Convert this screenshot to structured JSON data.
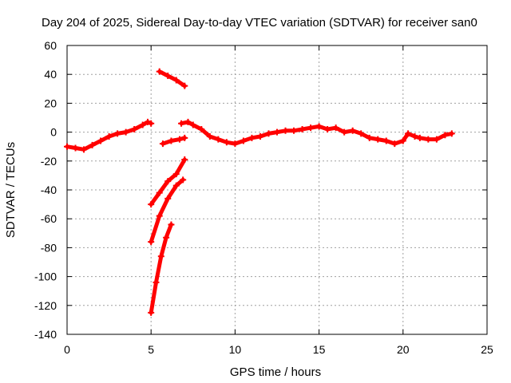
{
  "chart_data": {
    "type": "line",
    "title": "Day 204 of 2025, Sidereal Day-to-day VTEC variation (SDTVAR) for receiver san0",
    "xlabel": "GPS time / hours",
    "ylabel": "SDTVAR / TECUs",
    "xlim": [
      0,
      25
    ],
    "ylim": [
      -140,
      60
    ],
    "xticks": [
      0,
      5,
      10,
      15,
      20,
      25
    ],
    "yticks": [
      -140,
      -120,
      -100,
      -80,
      -60,
      -40,
      -20,
      0,
      20,
      40,
      60
    ],
    "xtick_labels": [
      "0",
      "5",
      "10",
      "15",
      "20",
      "25"
    ],
    "ytick_labels": [
      "-140",
      "-120",
      "-100",
      "-80",
      "-60",
      "-40",
      "-20",
      "0",
      "20",
      "40",
      "60"
    ],
    "grid": true,
    "legend": "none",
    "color": "#ff0000",
    "series": [
      {
        "name": "main",
        "points": [
          [
            0.0,
            -10
          ],
          [
            0.5,
            -11
          ],
          [
            1.0,
            -12
          ],
          [
            1.5,
            -9
          ],
          [
            2.0,
            -6
          ],
          [
            2.5,
            -3
          ],
          [
            3.0,
            -1
          ],
          [
            3.5,
            0
          ],
          [
            4.0,
            2
          ],
          [
            4.5,
            5
          ],
          [
            4.8,
            7
          ],
          [
            5.0,
            6
          ]
        ]
      },
      {
        "name": "arc-upper",
        "points": [
          [
            5.5,
            42
          ],
          [
            6.0,
            39
          ],
          [
            6.5,
            36
          ],
          [
            7.0,
            32
          ]
        ]
      },
      {
        "name": "arc-mid",
        "points": [
          [
            5.7,
            -8
          ],
          [
            6.2,
            -6
          ],
          [
            6.7,
            -5
          ],
          [
            7.0,
            -4
          ]
        ]
      },
      {
        "name": "drop-1",
        "points": [
          [
            5.0,
            -50
          ],
          [
            5.5,
            -42
          ],
          [
            6.0,
            -34
          ],
          [
            6.5,
            -29
          ],
          [
            7.0,
            -19
          ]
        ]
      },
      {
        "name": "drop-2",
        "points": [
          [
            5.0,
            -76
          ],
          [
            5.5,
            -58
          ],
          [
            6.0,
            -46
          ],
          [
            6.5,
            -37
          ],
          [
            6.9,
            -33
          ]
        ]
      },
      {
        "name": "drop-3",
        "points": [
          [
            5.0,
            -125
          ],
          [
            5.3,
            -104
          ],
          [
            5.6,
            -86
          ],
          [
            5.9,
            -73
          ],
          [
            6.2,
            -64
          ]
        ]
      },
      {
        "name": "tail",
        "points": [
          [
            6.8,
            6
          ],
          [
            7.2,
            7
          ],
          [
            7.5,
            5
          ],
          [
            8.0,
            2
          ],
          [
            8.5,
            -3
          ],
          [
            9.0,
            -5
          ],
          [
            9.5,
            -7
          ],
          [
            10.0,
            -8
          ],
          [
            10.5,
            -6
          ],
          [
            11.0,
            -4
          ],
          [
            11.5,
            -3
          ],
          [
            12.0,
            -1
          ],
          [
            12.5,
            0
          ],
          [
            13.0,
            1
          ],
          [
            13.5,
            1
          ],
          [
            14.0,
            2
          ],
          [
            14.5,
            3
          ],
          [
            15.0,
            4
          ],
          [
            15.5,
            2
          ],
          [
            16.0,
            3
          ],
          [
            16.5,
            0
          ],
          [
            17.0,
            1
          ],
          [
            17.5,
            -1
          ],
          [
            18.0,
            -4
          ],
          [
            18.5,
            -5
          ],
          [
            19.0,
            -6
          ],
          [
            19.5,
            -8
          ],
          [
            20.0,
            -6
          ],
          [
            20.3,
            -1
          ],
          [
            20.7,
            -3
          ],
          [
            21.0,
            -4
          ],
          [
            21.5,
            -5
          ],
          [
            22.0,
            -5
          ],
          [
            22.5,
            -2
          ],
          [
            22.9,
            -1
          ]
        ]
      }
    ]
  }
}
